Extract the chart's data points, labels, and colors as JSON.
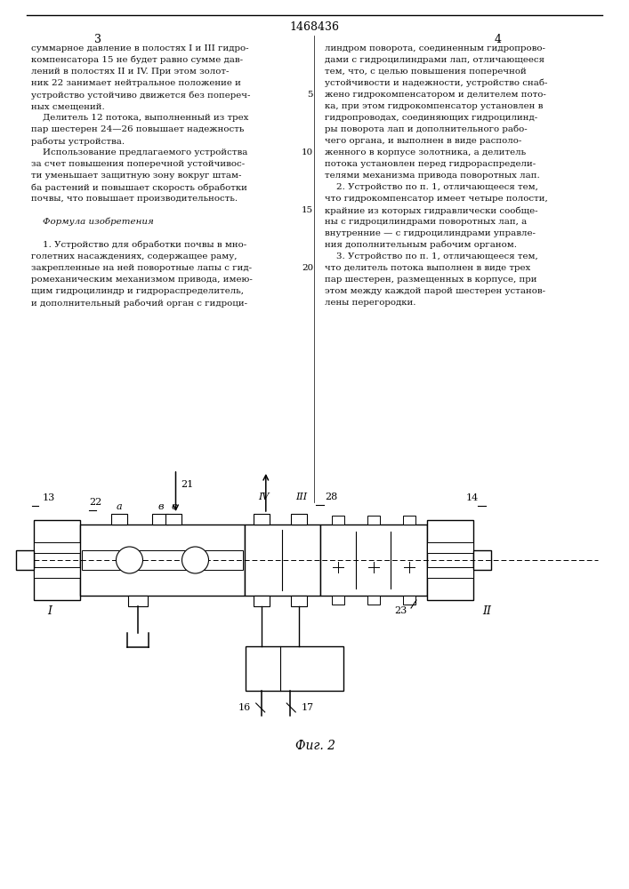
{
  "page_number_center": "1468436",
  "col_left_number": "3",
  "col_right_number": "4",
  "text_left_col": [
    "суммарное давление в полостях I и III гидро-",
    "компенсатора 15 не будет равно сумме дав-",
    "лений в полостях II и IV. При этом золот-",
    "ник 22 занимает нейтральное положение и",
    "устройство устойчиво движется без попереч-",
    "ных смещений.",
    "    Делитель 12 потока, выполненный из трех",
    "пар шестерен 24—26 повышает надежность",
    "работы устройства.",
    "    Использование предлагаемого устройства",
    "за счет повышения поперечной устойчивос-",
    "ти уменьшает защитную зону вокруг штам-",
    "ба растений и повышает скорость обработки",
    "почвы, что повышает производительность.",
    "",
    "    Формула изобретения",
    "",
    "    1. Устройство для обработки почвы в мно-",
    "голетних насаждениях, содержащее раму,",
    "закрепленные на ней поворотные лапы с гид-",
    "ромеханическим механизмом привода, имею-",
    "щим гидроцилиндр и гидрораспределитель,",
    "и дополнительный рабочий орган с гидроци-"
  ],
  "text_right_col": [
    "линдром поворота, соединенным гидропрово-",
    "дами с гидроцилиндрами лап, отличающееся",
    "тем, что, с целью повышения поперечной",
    "устойчивости и надежности, устройство снаб-",
    "жено гидрокомпенсатором и делителем пото-",
    "ка, при этом гидрокомпенсатор установлен в",
    "гидропроводах, соединяющих гидроцилинд-",
    "ры поворота лап и дополнительного рабо-",
    "чего органа, и выполнен в виде располо-",
    "женного в корпусе золотника, а делитель",
    "потока установлен перед гидрораспредели-",
    "телями механизма привода поворотных лап.",
    "    2. Устройство по п. 1, отличающееся тем,",
    "что гидрокомпенсатор имеет четыре полости,",
    "крайние из которых гидравлически сообще-",
    "ны с гидроцилиндрами поворотных лап, а",
    "внутренние — с гидроцилиндрами управле-",
    "ния дополнительным рабочим органом.",
    "    3. Устройство по п. 1, отличающееся тем,",
    "что делитель потока выполнен в виде трех",
    "пар шестерен, размещенных в корпусе, при",
    "этом между каждой парой шестерен установ-",
    "лены перегородки."
  ],
  "line_num_entries": [
    [
      4,
      "5"
    ],
    [
      9,
      "10"
    ],
    [
      14,
      "15"
    ],
    [
      19,
      "20"
    ]
  ],
  "italic_formula": "    Формула изобретения",
  "fig_caption": "Фиг. 2",
  "bg_color": "#ffffff",
  "text_color": "#111111"
}
